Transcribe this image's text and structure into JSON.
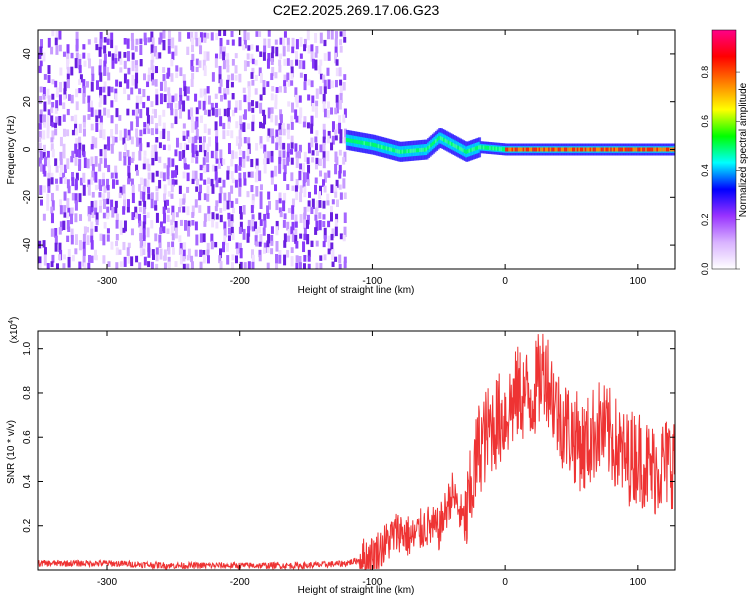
{
  "title": "C2E2.2025.269.17.06.G23",
  "chart_data": [
    {
      "type": "heatmap",
      "xlabel": "Height of straight line (km)",
      "ylabel": "Frequency (Hz)",
      "xlim": [
        -352,
        128
      ],
      "ylim": [
        -50,
        50
      ],
      "xticks": [
        -300,
        -200,
        -100,
        0,
        100
      ],
      "yticks": [
        -40,
        -20,
        0,
        20,
        40
      ],
      "colorbar": {
        "label": "Normalized spectral amplitude",
        "range": [
          0,
          1
        ],
        "ticks": [
          "0.0",
          "0.2",
          "0.4",
          "0.6",
          "0.8"
        ],
        "colors": [
          "#ffffff",
          "#d9b3ff",
          "#9933ff",
          "#0000ff",
          "#00ffff",
          "#00ff00",
          "#ffff00",
          "#ff8000",
          "#ff0000",
          "#ff0088"
        ]
      },
      "description_data": {
        "noise_region_x": [
          -352,
          -120
        ],
        "signal_start_x": -120,
        "signal_line": [
          [
            -120,
            4
          ],
          [
            -100,
            2
          ],
          [
            -80,
            -1
          ],
          [
            -60,
            0
          ],
          [
            -50,
            5
          ],
          [
            -40,
            2
          ],
          [
            -30,
            -1
          ],
          [
            -20,
            1
          ],
          [
            0,
            0
          ],
          [
            128,
            0
          ]
        ]
      }
    },
    {
      "type": "line",
      "xlabel": "Height of straight line (km)",
      "ylabel": "SNR (10 * v/v)",
      "yscale_label": "(x10",
      "yscale_exp": "4",
      "xlim": [
        -352,
        128
      ],
      "ylim": [
        0,
        1.08
      ],
      "xticks": [
        -300,
        -200,
        -100,
        0,
        100
      ],
      "yticks": [
        "0.2",
        "0.4",
        "0.6",
        "0.8",
        "1.0"
      ],
      "color": "#ee3333",
      "series": [
        {
          "x": [
            -352,
            -300,
            -250,
            -200,
            -150,
            -120,
            -100,
            -90,
            -80,
            -70,
            -60,
            -50,
            -40,
            -30,
            -20,
            -10,
            0,
            10,
            20,
            30,
            40,
            50,
            60,
            70,
            80,
            90,
            100,
            110,
            120,
            128
          ],
          "y": [
            0.03,
            0.03,
            0.02,
            0.02,
            0.02,
            0.03,
            0.06,
            0.12,
            0.18,
            0.14,
            0.2,
            0.18,
            0.35,
            0.2,
            0.55,
            0.65,
            0.7,
            0.8,
            0.78,
            0.92,
            0.7,
            0.62,
            0.55,
            0.65,
            0.6,
            0.5,
            0.52,
            0.45,
            0.48,
            0.5
          ]
        }
      ]
    }
  ]
}
